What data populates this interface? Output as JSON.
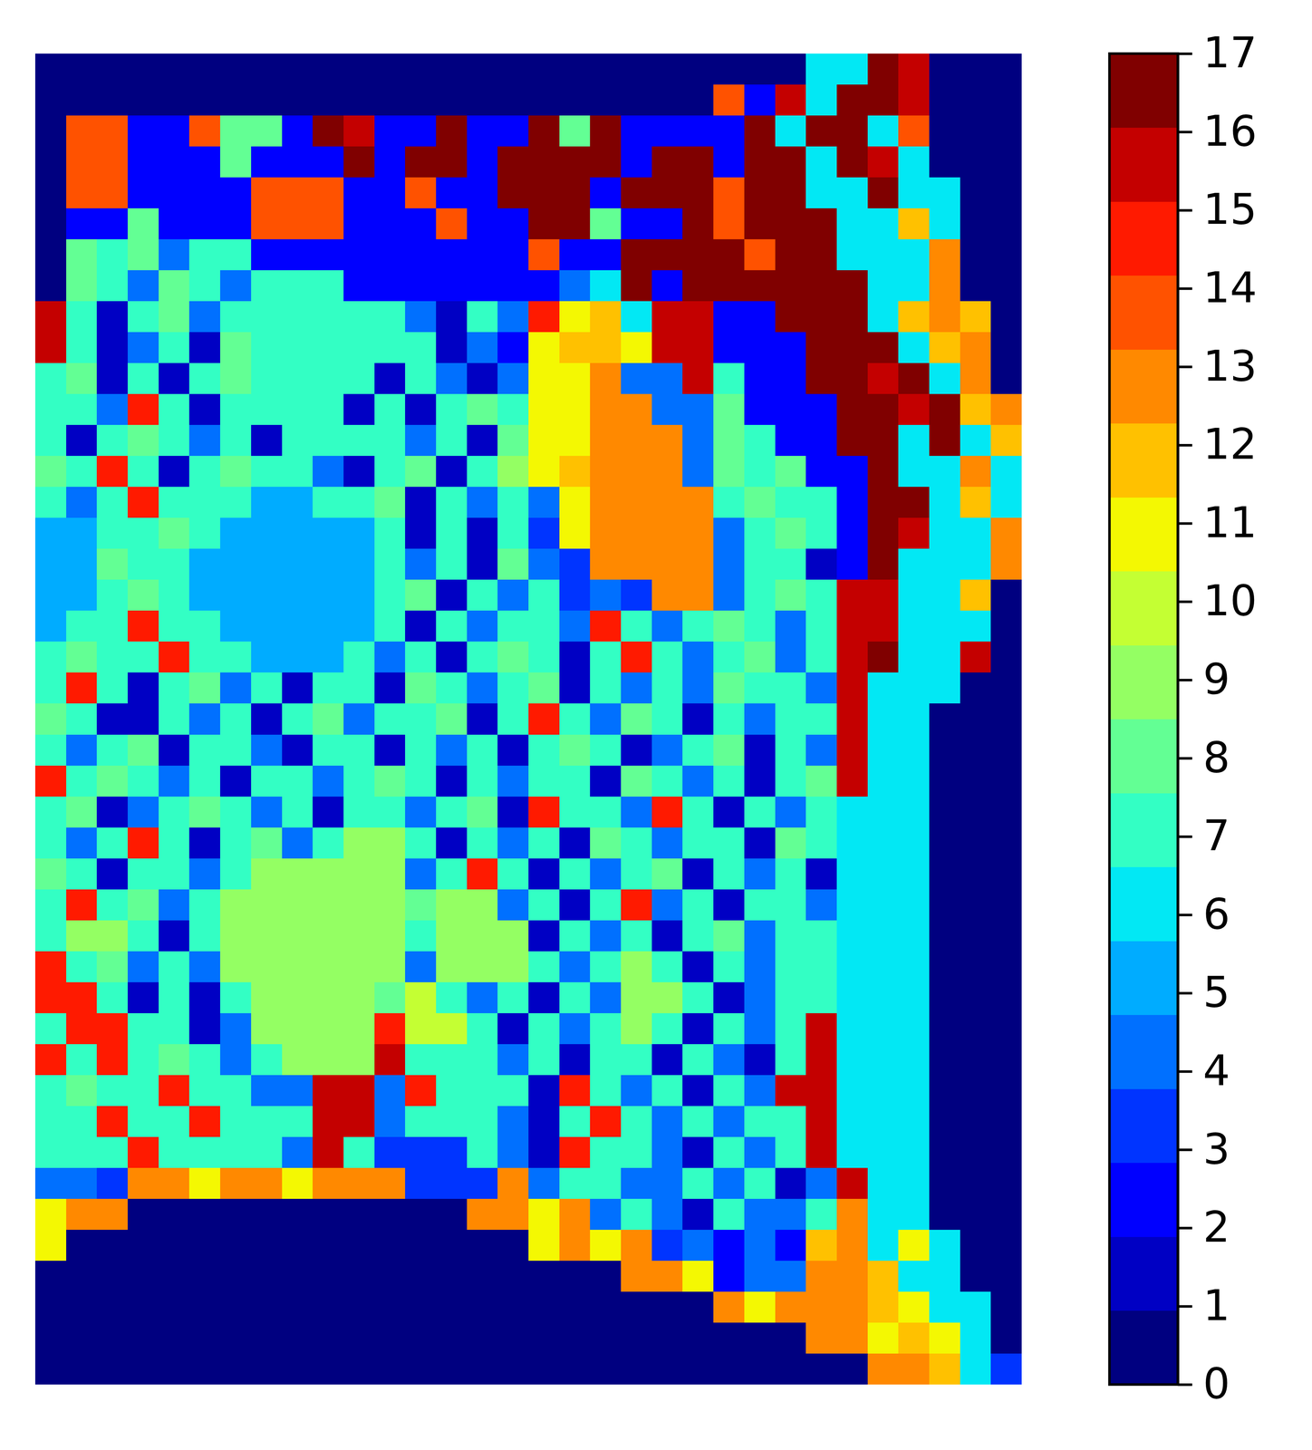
{
  "chart_data": {
    "type": "heatmap",
    "tick_labels": false,
    "colors": [
      "#000080",
      "#0000C4",
      "#0000FF",
      "#0034FF",
      "#0070FF",
      "#00ACFF",
      "#02E8F4",
      "#33FFC4",
      "#63FF94",
      "#94FF63",
      "#C4FF33",
      "#F4F802",
      "#FFC100",
      "#FF8900",
      "#FF5200",
      "#FF1A00",
      "#C40000",
      "#800000"
    ],
    "colorbar": {
      "lim": [
        0,
        17
      ],
      "ticks": [
        0,
        1,
        2,
        3,
        4,
        5,
        6,
        7,
        8,
        9,
        10,
        11,
        12,
        13,
        14,
        15,
        16,
        17
      ]
    },
    "cells": [
      [
        0,
        0,
        0,
        0,
        0,
        0,
        0,
        0,
        0,
        0,
        0,
        0,
        0,
        0,
        0,
        0,
        0,
        0,
        0,
        0,
        0,
        0,
        0,
        0,
        0,
        6,
        6,
        17,
        16,
        0,
        0,
        0
      ],
      [
        0,
        0,
        0,
        0,
        0,
        0,
        0,
        0,
        0,
        0,
        0,
        0,
        0,
        0,
        0,
        0,
        0,
        0,
        0,
        0,
        0,
        0,
        14,
        2,
        16,
        6,
        17,
        17,
        16,
        0,
        0,
        0
      ],
      [
        0,
        14,
        14,
        2,
        2,
        14,
        8,
        8,
        2,
        17,
        16,
        2,
        2,
        17,
        2,
        2,
        17,
        8,
        17,
        2,
        2,
        2,
        2,
        17,
        6,
        17,
        17,
        6,
        14,
        0,
        0,
        0
      ],
      [
        0,
        14,
        14,
        2,
        2,
        2,
        8,
        2,
        2,
        2,
        17,
        2,
        17,
        17,
        2,
        17,
        17,
        17,
        17,
        2,
        17,
        17,
        2,
        17,
        17,
        6,
        17,
        16,
        6,
        0,
        0,
        0
      ],
      [
        0,
        14,
        14,
        2,
        2,
        2,
        2,
        14,
        14,
        14,
        2,
        2,
        14,
        2,
        2,
        17,
        17,
        17,
        2,
        17,
        17,
        17,
        14,
        17,
        17,
        6,
        6,
        17,
        6,
        6,
        0,
        0
      ],
      [
        0,
        2,
        2,
        8,
        2,
        2,
        2,
        14,
        14,
        14,
        2,
        2,
        2,
        14,
        2,
        2,
        17,
        17,
        8,
        2,
        2,
        17,
        14,
        17,
        17,
        17,
        6,
        6,
        12,
        6,
        0,
        0
      ],
      [
        0,
        8,
        7,
        8,
        4,
        7,
        7,
        2,
        2,
        2,
        2,
        2,
        2,
        2,
        2,
        2,
        14,
        2,
        2,
        17,
        17,
        17,
        17,
        14,
        17,
        17,
        6,
        6,
        6,
        13,
        0,
        0
      ],
      [
        0,
        8,
        7,
        4,
        8,
        7,
        4,
        7,
        7,
        7,
        2,
        2,
        2,
        2,
        2,
        2,
        2,
        4,
        6,
        17,
        2,
        17,
        17,
        17,
        17,
        17,
        17,
        6,
        6,
        13,
        0,
        0
      ],
      [
        16,
        7,
        1,
        7,
        8,
        4,
        7,
        7,
        7,
        7,
        7,
        7,
        4,
        1,
        7,
        4,
        15,
        11,
        12,
        6,
        16,
        16,
        2,
        2,
        17,
        17,
        17,
        6,
        12,
        13,
        12,
        0
      ],
      [
        16,
        7,
        1,
        4,
        7,
        1,
        8,
        7,
        7,
        7,
        7,
        7,
        7,
        1,
        4,
        2,
        11,
        12,
        12,
        11,
        16,
        16,
        2,
        2,
        2,
        17,
        17,
        17,
        6,
        12,
        13,
        0
      ],
      [
        7,
        8,
        1,
        7,
        1,
        7,
        8,
        7,
        7,
        7,
        7,
        1,
        7,
        4,
        1,
        4,
        11,
        11,
        13,
        4,
        4,
        16,
        7,
        2,
        2,
        17,
        17,
        16,
        17,
        6,
        13,
        0
      ],
      [
        7,
        7,
        4,
        15,
        7,
        1,
        7,
        7,
        7,
        7,
        1,
        7,
        1,
        7,
        8,
        7,
        11,
        11,
        13,
        13,
        4,
        4,
        8,
        2,
        2,
        2,
        17,
        17,
        16,
        17,
        12,
        13
      ],
      [
        7,
        1,
        7,
        8,
        7,
        4,
        7,
        1,
        7,
        7,
        7,
        7,
        4,
        7,
        1,
        8,
        11,
        11,
        13,
        13,
        13,
        4,
        8,
        7,
        2,
        2,
        17,
        17,
        6,
        17,
        6,
        12
      ],
      [
        8,
        7,
        15,
        7,
        1,
        7,
        8,
        7,
        7,
        4,
        1,
        7,
        8,
        1,
        7,
        9,
        11,
        12,
        13,
        13,
        13,
        4,
        8,
        7,
        8,
        2,
        2,
        17,
        6,
        6,
        13,
        6
      ],
      [
        7,
        4,
        7,
        15,
        7,
        7,
        7,
        5,
        5,
        7,
        7,
        8,
        1,
        7,
        4,
        7,
        4,
        11,
        13,
        13,
        13,
        13,
        7,
        8,
        7,
        7,
        2,
        17,
        17,
        6,
        12,
        6
      ],
      [
        5,
        5,
        7,
        7,
        8,
        7,
        5,
        5,
        5,
        5,
        5,
        7,
        1,
        7,
        1,
        7,
        3,
        11,
        13,
        13,
        13,
        13,
        4,
        7,
        8,
        7,
        2,
        17,
        16,
        6,
        6,
        13
      ],
      [
        5,
        5,
        8,
        7,
        7,
        5,
        5,
        5,
        5,
        5,
        5,
        7,
        4,
        7,
        1,
        8,
        4,
        3,
        13,
        13,
        13,
        13,
        4,
        7,
        7,
        1,
        2,
        17,
        6,
        6,
        6,
        13
      ],
      [
        5,
        5,
        7,
        8,
        7,
        5,
        5,
        5,
        5,
        5,
        5,
        7,
        8,
        1,
        7,
        4,
        7,
        3,
        4,
        3,
        13,
        13,
        4,
        7,
        8,
        7,
        16,
        16,
        6,
        6,
        12,
        0
      ],
      [
        5,
        7,
        7,
        15,
        7,
        7,
        5,
        5,
        5,
        5,
        5,
        7,
        1,
        7,
        4,
        7,
        7,
        4,
        15,
        7,
        4,
        7,
        8,
        7,
        4,
        7,
        16,
        16,
        6,
        6,
        6,
        0
      ],
      [
        7,
        8,
        7,
        7,
        15,
        7,
        7,
        5,
        5,
        5,
        7,
        4,
        7,
        1,
        7,
        8,
        7,
        1,
        7,
        15,
        7,
        4,
        7,
        8,
        4,
        7,
        16,
        17,
        6,
        6,
        16,
        0
      ],
      [
        7,
        15,
        7,
        1,
        7,
        8,
        4,
        7,
        1,
        7,
        7,
        1,
        8,
        7,
        4,
        7,
        8,
        1,
        7,
        4,
        7,
        4,
        8,
        7,
        7,
        4,
        16,
        6,
        6,
        6,
        0,
        0
      ],
      [
        8,
        7,
        1,
        1,
        7,
        4,
        7,
        1,
        7,
        8,
        4,
        7,
        7,
        8,
        1,
        7,
        15,
        7,
        4,
        8,
        7,
        1,
        7,
        4,
        7,
        7,
        16,
        6,
        6,
        0,
        0,
        0
      ],
      [
        7,
        4,
        7,
        8,
        1,
        7,
        7,
        4,
        1,
        7,
        7,
        1,
        7,
        4,
        7,
        1,
        7,
        8,
        7,
        1,
        4,
        7,
        8,
        1,
        7,
        4,
        16,
        6,
        6,
        0,
        0,
        0
      ],
      [
        15,
        7,
        8,
        7,
        4,
        7,
        1,
        7,
        7,
        4,
        7,
        8,
        7,
        1,
        7,
        4,
        7,
        7,
        1,
        8,
        7,
        4,
        7,
        1,
        7,
        8,
        16,
        6,
        6,
        0,
        0,
        0
      ],
      [
        7,
        8,
        1,
        4,
        7,
        8,
        7,
        4,
        7,
        1,
        7,
        7,
        4,
        7,
        8,
        1,
        15,
        7,
        7,
        4,
        15,
        7,
        1,
        7,
        4,
        7,
        6,
        6,
        6,
        0,
        0,
        0
      ],
      [
        7,
        4,
        7,
        15,
        7,
        1,
        7,
        8,
        4,
        7,
        9,
        9,
        7,
        1,
        7,
        4,
        7,
        1,
        8,
        7,
        4,
        7,
        7,
        1,
        8,
        7,
        6,
        6,
        6,
        0,
        0,
        0
      ],
      [
        8,
        7,
        1,
        7,
        7,
        4,
        7,
        9,
        9,
        9,
        9,
        9,
        4,
        7,
        15,
        7,
        1,
        7,
        4,
        7,
        8,
        1,
        7,
        4,
        7,
        1,
        6,
        6,
        6,
        0,
        0,
        0
      ],
      [
        7,
        15,
        7,
        8,
        4,
        7,
        9,
        9,
        9,
        9,
        9,
        9,
        8,
        9,
        9,
        4,
        7,
        1,
        7,
        15,
        4,
        7,
        1,
        7,
        7,
        4,
        6,
        6,
        6,
        0,
        0,
        0
      ],
      [
        7,
        9,
        9,
        7,
        1,
        7,
        9,
        9,
        9,
        9,
        9,
        9,
        7,
        9,
        9,
        9,
        1,
        7,
        4,
        7,
        1,
        7,
        8,
        4,
        7,
        7,
        6,
        6,
        6,
        0,
        0,
        0
      ],
      [
        15,
        7,
        8,
        4,
        7,
        4,
        9,
        9,
        9,
        9,
        9,
        9,
        4,
        9,
        9,
        9,
        7,
        4,
        7,
        9,
        7,
        1,
        7,
        4,
        7,
        7,
        6,
        6,
        6,
        0,
        0,
        0
      ],
      [
        15,
        15,
        7,
        1,
        7,
        1,
        7,
        9,
        9,
        9,
        9,
        8,
        10,
        7,
        4,
        7,
        1,
        7,
        4,
        9,
        9,
        7,
        1,
        4,
        7,
        7,
        6,
        6,
        6,
        0,
        0,
        0
      ],
      [
        7,
        15,
        15,
        7,
        7,
        1,
        4,
        9,
        9,
        9,
        9,
        15,
        10,
        10,
        7,
        1,
        7,
        4,
        7,
        9,
        7,
        1,
        7,
        4,
        7,
        16,
        6,
        6,
        6,
        0,
        0,
        0
      ],
      [
        15,
        7,
        15,
        7,
        8,
        7,
        4,
        7,
        9,
        9,
        9,
        16,
        7,
        7,
        7,
        4,
        7,
        1,
        7,
        7,
        1,
        7,
        4,
        1,
        7,
        16,
        6,
        6,
        6,
        0,
        0,
        0
      ],
      [
        7,
        8,
        7,
        7,
        15,
        7,
        7,
        4,
        4,
        16,
        16,
        4,
        15,
        7,
        7,
        7,
        1,
        15,
        7,
        4,
        7,
        1,
        7,
        4,
        16,
        16,
        6,
        6,
        6,
        0,
        0,
        0
      ],
      [
        7,
        7,
        15,
        7,
        7,
        15,
        7,
        7,
        7,
        16,
        16,
        4,
        7,
        7,
        7,
        4,
        1,
        7,
        15,
        7,
        4,
        7,
        4,
        7,
        7,
        16,
        6,
        6,
        6,
        0,
        0,
        0
      ],
      [
        7,
        7,
        7,
        15,
        7,
        7,
        7,
        7,
        4,
        16,
        7,
        3,
        3,
        3,
        7,
        4,
        1,
        15,
        7,
        7,
        4,
        1,
        7,
        4,
        7,
        16,
        6,
        6,
        6,
        0,
        0,
        0
      ],
      [
        4,
        4,
        3,
        13,
        13,
        11,
        13,
        13,
        11,
        13,
        13,
        13,
        3,
        3,
        3,
        13,
        4,
        7,
        7,
        4,
        4,
        7,
        4,
        7,
        1,
        4,
        16,
        6,
        6,
        0,
        0,
        0
      ],
      [
        11,
        13,
        13,
        0,
        0,
        0,
        0,
        0,
        0,
        0,
        0,
        0,
        0,
        0,
        13,
        13,
        11,
        13,
        4,
        7,
        4,
        1,
        7,
        4,
        4,
        7,
        13,
        6,
        6,
        0,
        0,
        0
      ],
      [
        11,
        0,
        0,
        0,
        0,
        0,
        0,
        0,
        0,
        0,
        0,
        0,
        0,
        0,
        0,
        0,
        11,
        13,
        11,
        13,
        3,
        4,
        2,
        4,
        2,
        12,
        13,
        6,
        11,
        6,
        0,
        0
      ],
      [
        0,
        0,
        0,
        0,
        0,
        0,
        0,
        0,
        0,
        0,
        0,
        0,
        0,
        0,
        0,
        0,
        0,
        0,
        0,
        13,
        13,
        11,
        2,
        4,
        4,
        13,
        13,
        12,
        6,
        6,
        0,
        0
      ],
      [
        0,
        0,
        0,
        0,
        0,
        0,
        0,
        0,
        0,
        0,
        0,
        0,
        0,
        0,
        0,
        0,
        0,
        0,
        0,
        0,
        0,
        0,
        13,
        11,
        13,
        13,
        13,
        12,
        11,
        6,
        6,
        0
      ],
      [
        0,
        0,
        0,
        0,
        0,
        0,
        0,
        0,
        0,
        0,
        0,
        0,
        0,
        0,
        0,
        0,
        0,
        0,
        0,
        0,
        0,
        0,
        0,
        0,
        0,
        13,
        13,
        11,
        12,
        11,
        6,
        0
      ],
      [
        0,
        0,
        0,
        0,
        0,
        0,
        0,
        0,
        0,
        0,
        0,
        0,
        0,
        0,
        0,
        0,
        0,
        0,
        0,
        0,
        0,
        0,
        0,
        0,
        0,
        0,
        0,
        13,
        13,
        12,
        6,
        3
      ]
    ]
  }
}
